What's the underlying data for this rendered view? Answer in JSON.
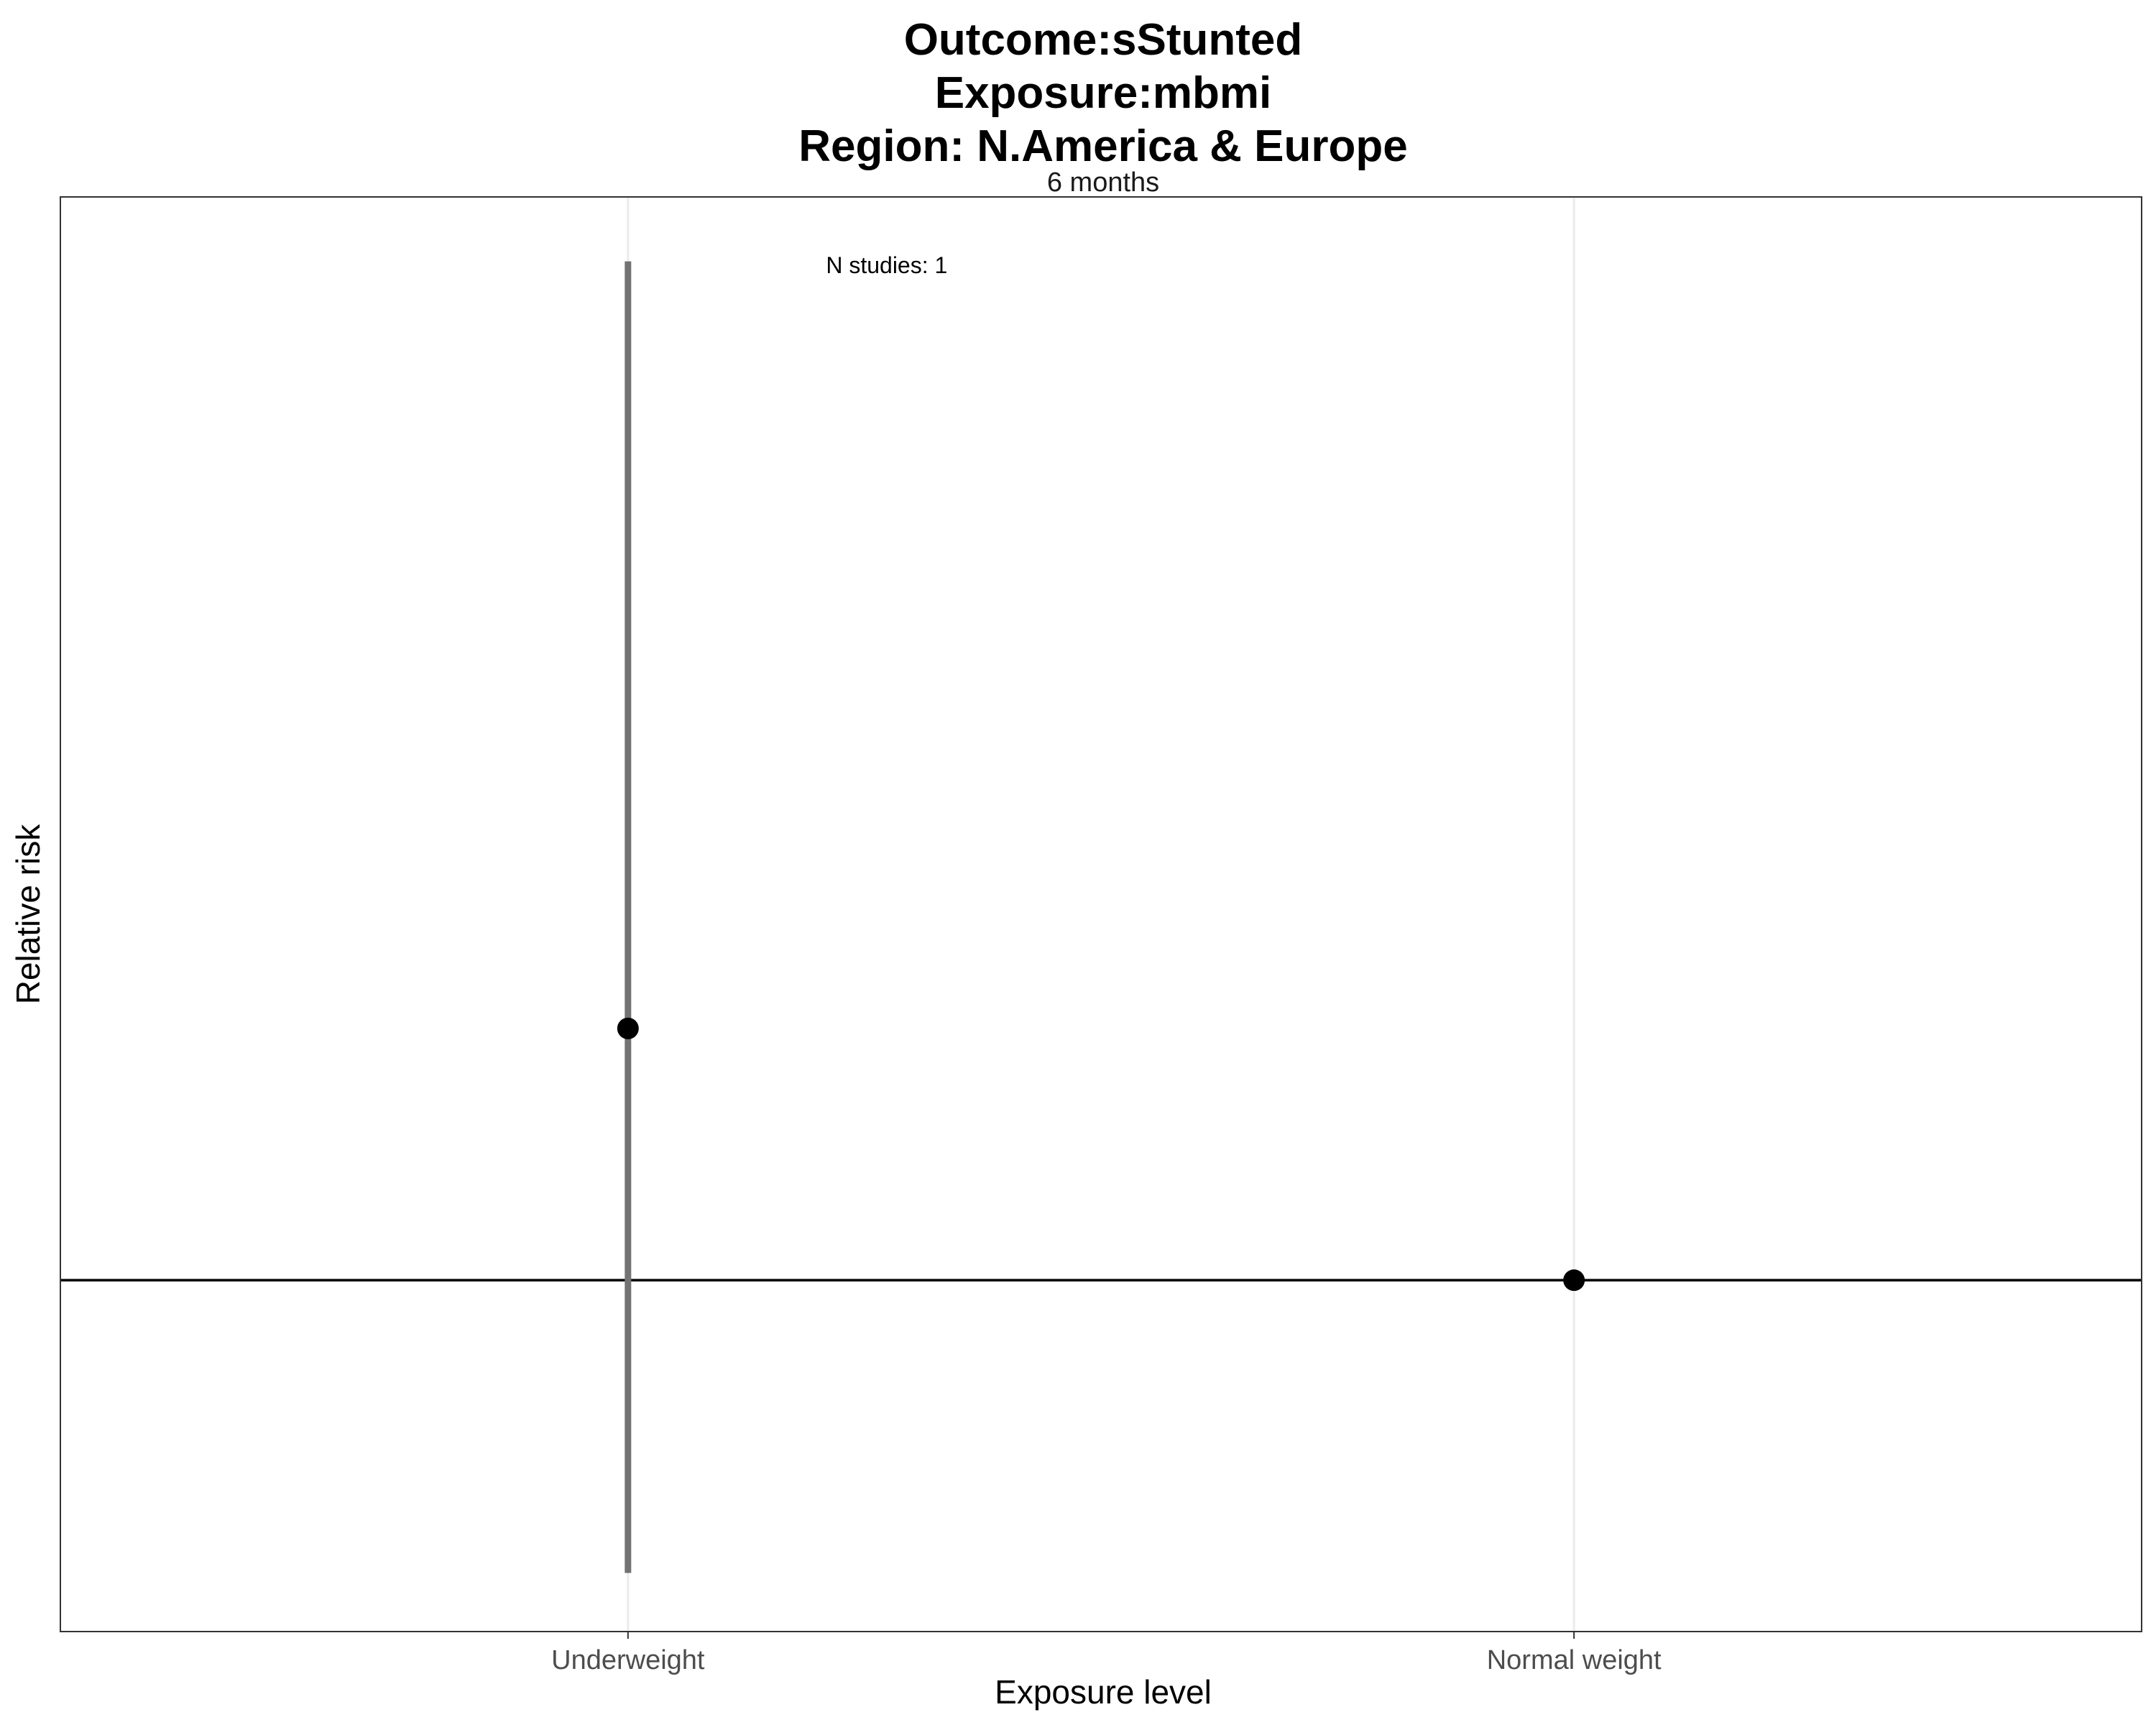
{
  "chart_data": {
    "type": "scatter",
    "title": [
      "Outcome:sStunted",
      "Exposure:mbmi",
      "Region: N.America & Europe"
    ],
    "facet_label": "6 months",
    "xlabel": "Exposure level",
    "ylabel": "Relative risk",
    "categories": [
      "Underweight",
      "Normal weight"
    ],
    "ylim": [
      0.4,
      2.85
    ],
    "reference_line": 1,
    "grid": "vertical-major-only",
    "y_tick_labels_shown": false,
    "points": [
      {
        "category": "Underweight",
        "estimate": 1.43,
        "ci_lower": 0.5,
        "ci_upper": 2.74
      },
      {
        "category": "Normal weight",
        "estimate": 1
      }
    ],
    "annotations": [
      {
        "text": "N studies: 1",
        "category": "Underweight",
        "y": 2.73
      }
    ],
    "colors": {
      "point": "#000000",
      "errorbar": "#737373",
      "reference_line": "#000000",
      "gridline": "#ebebeb",
      "panel_border": "#333333"
    }
  }
}
